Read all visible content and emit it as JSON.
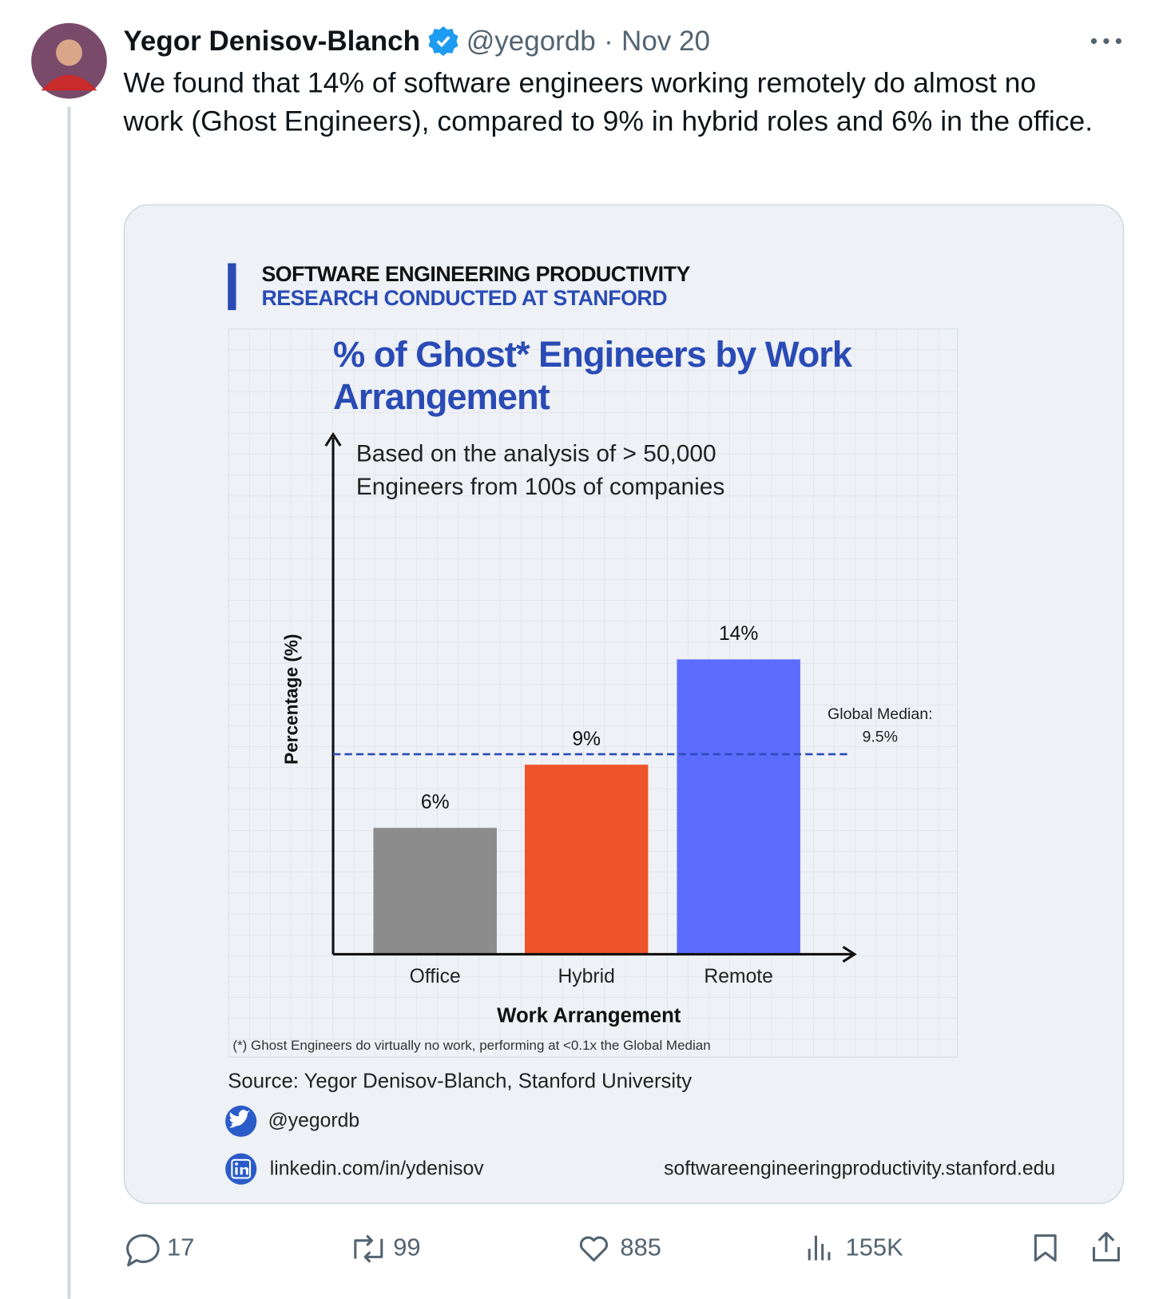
{
  "tweet": {
    "name": "Yegor Denisov-Blanch",
    "handle": "@yegordb",
    "separator": "·",
    "date": "Nov 20",
    "text": "We found that 14% of software engineers working remotely do almost no work (Ghost Engineers), compared to 9% in hybrid roles and 6% in the office.",
    "stats": {
      "replies": "17",
      "reposts": "99",
      "likes": "885",
      "views": "155K"
    }
  },
  "card": {
    "header": {
      "line1": "SOFTWARE ENGINEERING PRODUCTIVITY",
      "line2": "RESEARCH CONDUCTED AT STANFORD"
    },
    "footnote": "(*) Ghost Engineers do virtually no work, performing at <0.1x the Global Median",
    "source": "Source: Yegor Denisov-Blanch, Stanford University",
    "twitter": "@yegordb",
    "linkedin": "linkedin.com/in/ydenisov",
    "website": "softwareengineeringproductivity.stanford.edu"
  },
  "chart_data": {
    "type": "bar",
    "title": "% of Ghost* Engineers by Work Arrangement",
    "subtitle": "Based on the analysis of > 50,000 Engineers from 100s of companies",
    "x_label": "Work Arrangement",
    "y_label": "Percentage (%)",
    "categories": [
      "Office",
      "Hybrid",
      "Remote"
    ],
    "values": [
      6,
      9,
      14
    ],
    "value_labels": [
      "6%",
      "9%",
      "14%"
    ],
    "colors": [
      "#8c8c8c",
      "#ef532a",
      "#5b6cff"
    ],
    "ylim": [
      0,
      25
    ],
    "median": {
      "label": "Global Median:",
      "value": 9.5,
      "value_label": "9.5%",
      "color": "#2a4bb5"
    }
  }
}
